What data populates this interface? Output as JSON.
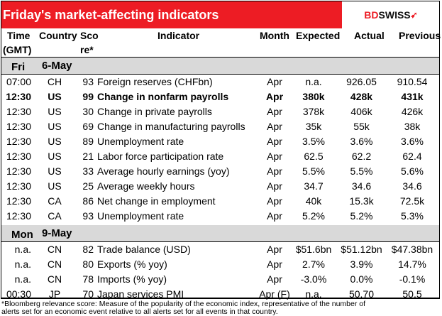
{
  "title": "Friday's market-affecting indicators",
  "logo": {
    "bd": "BD",
    "swiss": "SWISS",
    "accent": "#ed1c24"
  },
  "headers": {
    "time": "Time",
    "time2": "(GMT)",
    "country": "Country",
    "score": "Sco",
    "score2": "re*",
    "indicator": "Indicator",
    "month": "Month",
    "expected": "Expected",
    "actual": "Actual",
    "previous": "Previous"
  },
  "groups": [
    {
      "day": "Fri",
      "date": "6-May",
      "rows": [
        {
          "time": "07:00",
          "country": "CH",
          "score": "93",
          "indicator": "Foreign reserves (CHFbn)",
          "month": "Apr",
          "expected": "n.a.",
          "actual": "926.05",
          "previous": "910.54",
          "bold": false
        },
        {
          "time": "12:30",
          "country": "US",
          "score": "99",
          "indicator": "Change in nonfarm payrolls",
          "month": "Apr",
          "expected": "380k",
          "actual": "428k",
          "previous": "431k",
          "bold": true
        },
        {
          "time": "12:30",
          "country": "US",
          "score": "30",
          "indicator": "Change in private payrolls",
          "month": "Apr",
          "expected": "378k",
          "actual": "406k",
          "previous": "426k",
          "bold": false
        },
        {
          "time": "12:30",
          "country": "US",
          "score": "69",
          "indicator": "Change in manufacturing payrolls",
          "month": "Apr",
          "expected": "35k",
          "actual": "55k",
          "previous": "38k",
          "bold": false
        },
        {
          "time": "12:30",
          "country": "US",
          "score": "89",
          "indicator": "Unemployment rate",
          "month": "Apr",
          "expected": "3.5%",
          "actual": "3.6%",
          "previous": "3.6%",
          "bold": false
        },
        {
          "time": "12:30",
          "country": "US",
          "score": "21",
          "indicator": "Labor force participation rate",
          "month": "Apr",
          "expected": "62.5",
          "actual": "62.2",
          "previous": "62.4",
          "bold": false
        },
        {
          "time": "12:30",
          "country": "US",
          "score": "33",
          "indicator": "Average hourly earnings (yoy)",
          "month": "Apr",
          "expected": "5.5%",
          "actual": "5.5%",
          "previous": "5.6%",
          "bold": false
        },
        {
          "time": "12:30",
          "country": "US",
          "score": "25",
          "indicator": "Average weekly hours",
          "month": "Apr",
          "expected": "34.7",
          "actual": "34.6",
          "previous": "34.6",
          "bold": false
        },
        {
          "time": "12:30",
          "country": "CA",
          "score": "86",
          "indicator": "Net change in employment",
          "month": "Apr",
          "expected": "40k",
          "actual": "15.3k",
          "previous": "72.5k",
          "bold": false
        },
        {
          "time": "12:30",
          "country": "CA",
          "score": "93",
          "indicator": "Unemployment rate",
          "month": "Apr",
          "expected": "5.2%",
          "actual": "5.2%",
          "previous": "5.3%",
          "bold": false
        }
      ]
    },
    {
      "day": "Mon",
      "date": "9-May",
      "rows": [
        {
          "time": "n.a.",
          "country": "CN",
          "score": "82",
          "indicator": "Trade balance (USD)",
          "month": "Apr",
          "expected": "$51.6bn",
          "actual": "$51.12bn",
          "previous": "$47.38bn",
          "bold": false
        },
        {
          "time": "n.a.",
          "country": "CN",
          "score": "80",
          "indicator": "Exports (% yoy)",
          "month": "Apr",
          "expected": "2.7%",
          "actual": "3.9%",
          "previous": "14.7%",
          "bold": false
        },
        {
          "time": "n.a.",
          "country": "CN",
          "score": "78",
          "indicator": "Imports (% yoy)",
          "month": "Apr",
          "expected": "-3.0%",
          "actual": "0.0%",
          "previous": "-0.1%",
          "bold": false
        },
        {
          "time": "00:30",
          "country": "JP",
          "score": "70",
          "indicator": "Japan services PMI",
          "month": "Apr (F)",
          "expected": "n.a.",
          "actual": "50.70",
          "previous": "50.5",
          "bold": false
        }
      ]
    }
  ],
  "footnote1": "*Bloomberg relevance score:  Measure of the popularity of the economic index, representative of the number of",
  "footnote2": "alerts set for an economic event relative to all alerts set for all events in that country."
}
